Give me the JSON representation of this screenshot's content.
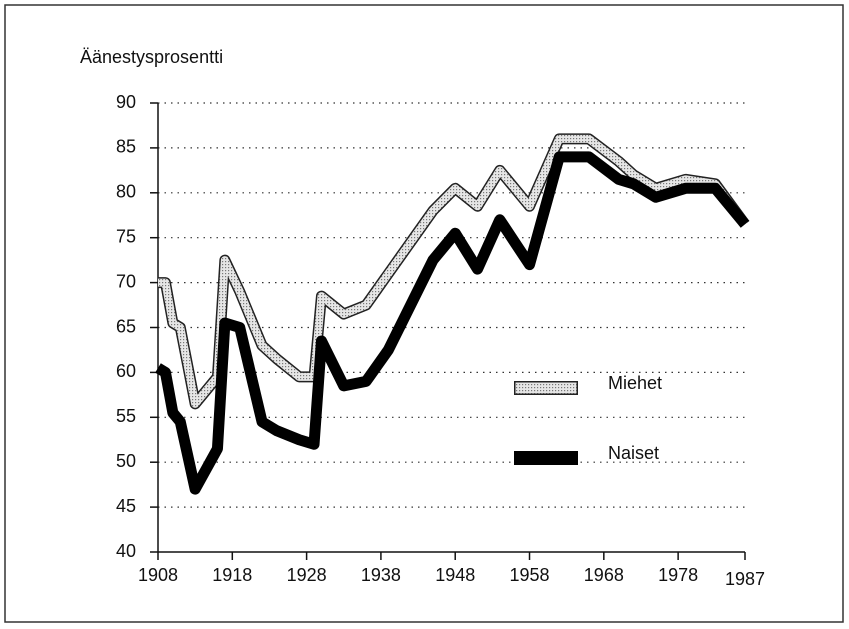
{
  "chart_data": {
    "type": "line",
    "y_label": "Äänestysprosentti",
    "x": [
      1908,
      1909,
      1910,
      1911,
      1913,
      1916,
      1917,
      1919,
      1922,
      1924,
      1927,
      1929,
      1930,
      1933,
      1936,
      1939,
      1945,
      1948,
      1951,
      1954,
      1958,
      1962,
      1966,
      1970,
      1972,
      1975,
      1979,
      1983,
      1987
    ],
    "series": [
      {
        "name": "Miehet",
        "color": "#c8c8c8",
        "values": [
          70,
          70,
          65.5,
          65,
          56.5,
          59.5,
          72.5,
          69,
          63,
          61.5,
          59.5,
          59.5,
          68.5,
          66.5,
          67.5,
          71,
          78,
          80.5,
          78.5,
          82.5,
          78.5,
          86,
          86,
          83.5,
          82,
          80.5,
          81.5,
          81,
          76.5
        ]
      },
      {
        "name": "Naiset",
        "color": "#000000",
        "values": [
          60.5,
          60,
          55.5,
          54.5,
          47,
          51.5,
          65.5,
          65,
          54.5,
          53.5,
          52.5,
          52,
          63.5,
          58.5,
          59,
          62.5,
          72.5,
          75.5,
          71.5,
          77,
          72,
          84,
          84,
          81.5,
          81,
          79.5,
          80.5,
          80.5,
          76.5
        ]
      }
    ],
    "xlim": [
      1908,
      1987
    ],
    "xticks": [
      1908,
      1918,
      1928,
      1938,
      1948,
      1958,
      1968,
      1978,
      1987
    ],
    "ylim": [
      40,
      90
    ],
    "yticks": [
      40,
      45,
      50,
      55,
      60,
      65,
      70,
      75,
      80,
      85,
      90
    ],
    "grid": true
  }
}
